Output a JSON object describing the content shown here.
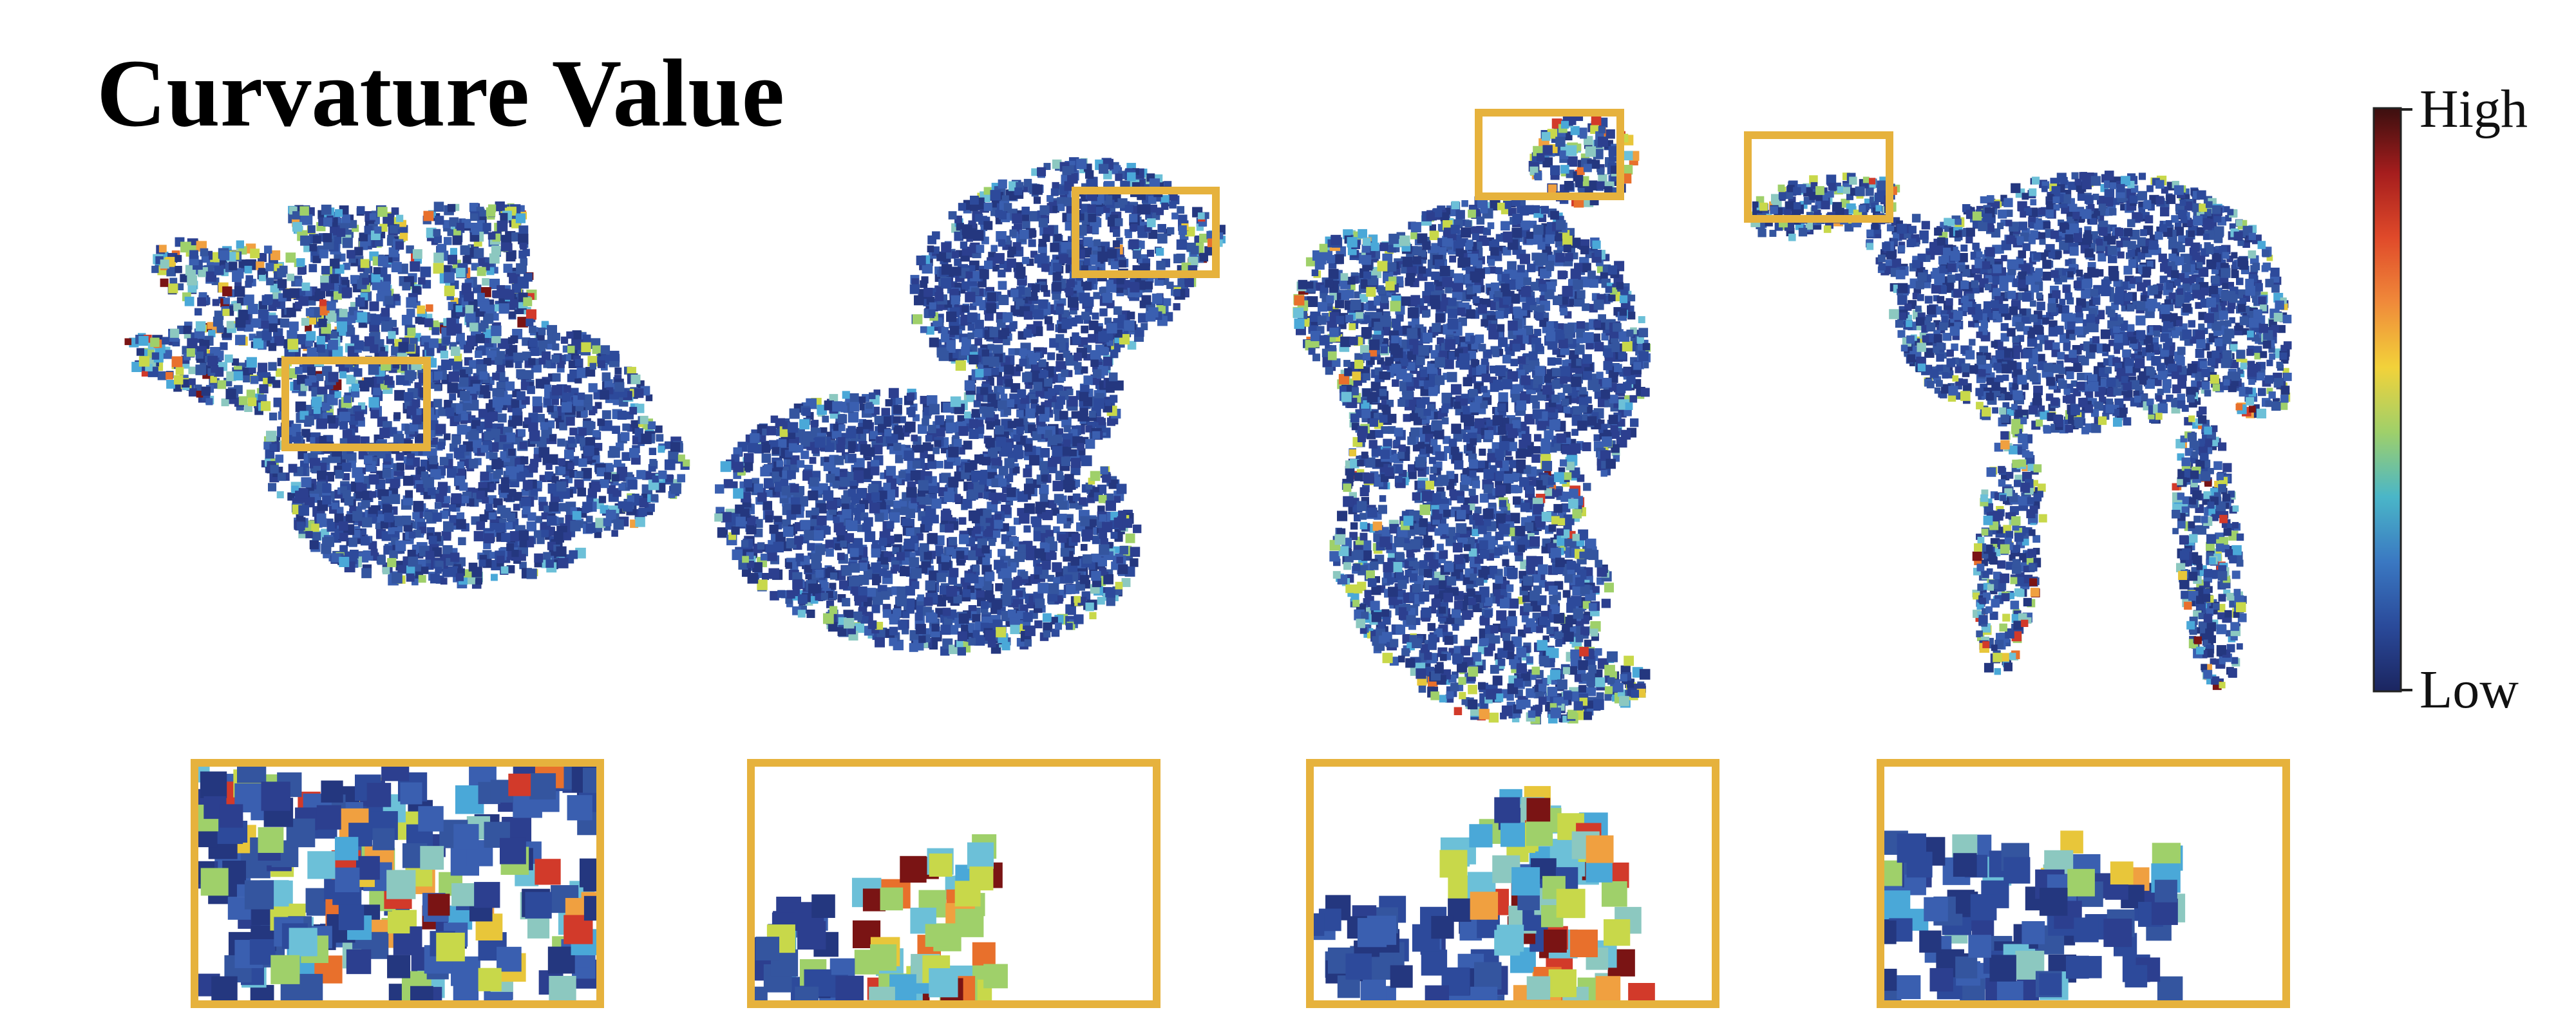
{
  "figure": {
    "title": "Curvature Value",
    "colorbar": {
      "label_high": "High",
      "label_low": "Low",
      "stops": [
        "#3b0f0f",
        "#a51d1d",
        "#e04a2a",
        "#f08a3a",
        "#f2d23a",
        "#9fd06a",
        "#4ab6c8",
        "#3a78c2",
        "#2a4a9a",
        "#1b2560"
      ]
    },
    "palette": {
      "low": [
        "#2c3f8f",
        "#2d4a9b",
        "#34559f",
        "#24377f",
        "#3a5fb0"
      ],
      "mid": [
        "#4aa8d8",
        "#6cc0d8",
        "#8cc8c0",
        "#9fd06a",
        "#c8d84a"
      ],
      "high": [
        "#e8c63a",
        "#f0a040",
        "#e8702c",
        "#d23a2a",
        "#7a1414"
      ],
      "frame": "#e6b23d"
    },
    "panels": [
      {
        "name": "hand"
      },
      {
        "name": "duck"
      },
      {
        "name": "teddy"
      },
      {
        "name": "camel"
      }
    ]
  }
}
